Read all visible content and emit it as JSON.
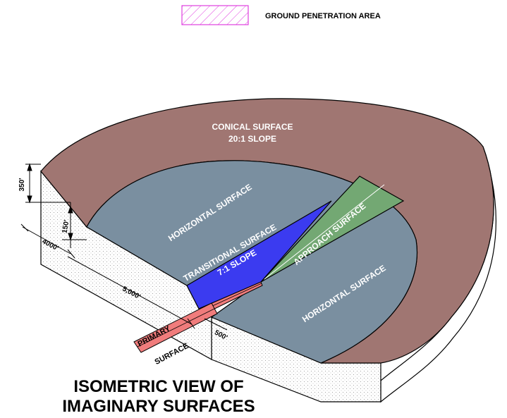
{
  "legend": {
    "label": "GROUND PENETRATION AREA",
    "swatch_color": "#e040e0"
  },
  "surfaces": {
    "conical": {
      "line1": "CONICAL SURFACE",
      "line2": "20:1 SLOPE",
      "color": "#a07672"
    },
    "horizontal_left": {
      "label": "HORIZONTAL SURFACE",
      "color": "#7a8fa0"
    },
    "horizontal_right": {
      "label": "HORIZONTAL SURFACE"
    },
    "transitional": {
      "line1": "TRANSITIONAL SURFACE",
      "line2": "7:1 SLOPE",
      "color": "#3b3bf0"
    },
    "approach": {
      "label": "APPROACH SURFACE",
      "color": "#73a873"
    },
    "primary": {
      "line1": "PRIMARY",
      "line2": "SURFACE",
      "color": "#f07c7c"
    }
  },
  "dimensions": {
    "height_350": "350'",
    "height_150": "150'",
    "dist_4000": "4000'",
    "dist_5000": "5,000'",
    "dist_500": "500'"
  },
  "title": {
    "line1": "ISOMETRIC VIEW OF",
    "line2": "IMAGINARY SURFACES"
  }
}
